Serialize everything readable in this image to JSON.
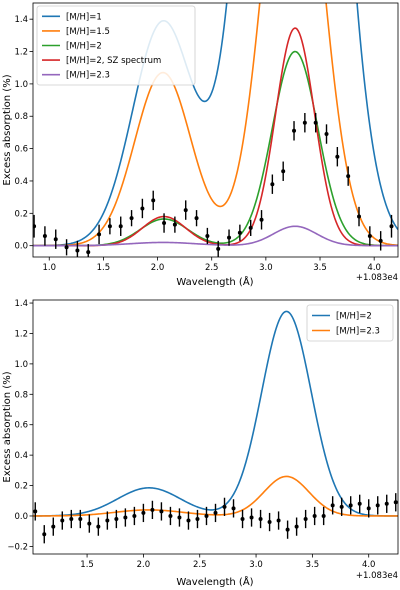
{
  "chart_data": [
    {
      "type": "line",
      "xlabel": "Wavelength (Å)",
      "ylabel": "Excess absorption (%)",
      "x_offset_label": "+1.083e4",
      "xlim": [
        0.85,
        4.22
      ],
      "ylim": [
        -0.07,
        1.5
      ],
      "xticks": [
        1.0,
        1.5,
        2.0,
        2.5,
        3.0,
        3.5,
        4.0
      ],
      "xtick_labels": [
        "1.0",
        "1.5",
        "2.0",
        "2.5",
        "3.0",
        "3.5",
        "4.0"
      ],
      "yticks": [
        0.0,
        0.2,
        0.4,
        0.6,
        0.8,
        1.0,
        1.2,
        1.4
      ],
      "ytick_labels": [
        "0.0",
        "0.2",
        "0.4",
        "0.6",
        "0.8",
        "1.0",
        "1.2",
        "1.4"
      ],
      "legend_position": "upper-left",
      "series": [
        {
          "name": "[M/H]=1",
          "color": "#1f77b4",
          "model": {
            "g1": {
              "amp": 1.38,
              "mu": 2.05,
              "sig": 0.28
            },
            "g2": {
              "amp": 7.5,
              "mu": 3.25,
              "sig": 0.33
            }
          }
        },
        {
          "name": "[M/H]=1.5",
          "color": "#ff7f0e",
          "model": {
            "g1": {
              "amp": 1.07,
              "mu": 2.05,
              "sig": 0.26
            },
            "g2": {
              "amp": 3.0,
              "mu": 3.25,
              "sig": 0.26
            }
          }
        },
        {
          "name": "[M/H]=2",
          "color": "#2ca02c",
          "model": {
            "g1": {
              "amp": 0.165,
              "mu": 2.06,
              "sig": 0.22
            },
            "g2": {
              "amp": 1.2,
              "mu": 3.27,
              "sig": 0.21
            }
          }
        },
        {
          "name": "[M/H]=2, SZ spectrum",
          "color": "#d62728",
          "model": {
            "g1": {
              "amp": 0.18,
              "mu": 2.06,
              "sig": 0.2
            },
            "g2": {
              "amp": 1.345,
              "mu": 3.27,
              "sig": 0.18
            }
          }
        },
        {
          "name": "[M/H]=2.3",
          "color": "#9467bd",
          "model": {
            "g1": {
              "amp": 0.02,
              "mu": 2.05,
              "sig": 0.3
            },
            "g2": {
              "amp": 0.12,
              "mu": 3.27,
              "sig": 0.2
            }
          }
        }
      ],
      "points": {
        "x": [
          0.86,
          0.96,
          1.06,
          1.16,
          1.26,
          1.36,
          1.46,
          1.56,
          1.66,
          1.76,
          1.86,
          1.96,
          2.06,
          2.16,
          2.26,
          2.36,
          2.46,
          2.56,
          2.66,
          2.76,
          2.86,
          2.96,
          3.06,
          3.16,
          3.26,
          3.36,
          3.46,
          3.56,
          3.66,
          3.76,
          3.86,
          3.96,
          4.06,
          4.16
        ],
        "y": [
          0.12,
          0.06,
          0.04,
          -0.01,
          -0.03,
          -0.04,
          0.07,
          0.12,
          0.12,
          0.17,
          0.23,
          0.28,
          0.14,
          0.13,
          0.22,
          0.17,
          0.06,
          -0.02,
          0.05,
          0.08,
          0.11,
          0.16,
          0.38,
          0.46,
          0.71,
          0.76,
          0.76,
          0.69,
          0.55,
          0.43,
          0.18,
          0.06,
          0.03,
          0.12
        ],
        "err": [
          0.07,
          0.06,
          0.06,
          0.05,
          0.06,
          0.05,
          0.06,
          0.05,
          0.06,
          0.05,
          0.06,
          0.06,
          0.06,
          0.05,
          0.06,
          0.05,
          0.05,
          0.05,
          0.05,
          0.05,
          0.05,
          0.06,
          0.06,
          0.06,
          0.06,
          0.06,
          0.06,
          0.06,
          0.06,
          0.06,
          0.06,
          0.06,
          0.06,
          0.07
        ]
      }
    },
    {
      "type": "line",
      "xlabel": "Wavelength (Å)",
      "ylabel": "Excess absorption (%)",
      "x_offset_label": "+1.083e4",
      "xlim": [
        1.02,
        4.26
      ],
      "ylim": [
        -0.25,
        1.42
      ],
      "xticks": [
        1.5,
        2.0,
        2.5,
        3.0,
        3.5,
        4.0
      ],
      "xtick_labels": [
        "1.5",
        "2.0",
        "2.5",
        "3.0",
        "3.5",
        "4.0"
      ],
      "yticks": [
        -0.2,
        0.0,
        0.2,
        0.4,
        0.6,
        0.8,
        1.0,
        1.2,
        1.4
      ],
      "ytick_labels": [
        "−0.2",
        "0.0",
        "0.2",
        "0.4",
        "0.6",
        "0.8",
        "1.0",
        "1.2",
        "1.4"
      ],
      "legend_position": "upper-right",
      "series": [
        {
          "name": "[M/H]=2",
          "color": "#1f77b4",
          "model": {
            "g1": {
              "amp": 0.185,
              "mu": 2.05,
              "sig": 0.28
            },
            "g2": {
              "amp": 1.345,
              "mu": 3.27,
              "sig": 0.22
            }
          }
        },
        {
          "name": "[M/H]=2.3",
          "color": "#ff7f0e",
          "model": {
            "g1": {
              "amp": 0.04,
              "mu": 2.05,
              "sig": 0.3
            },
            "g2": {
              "amp": 0.26,
              "mu": 3.27,
              "sig": 0.2
            }
          }
        }
      ],
      "points": {
        "x": [
          1.04,
          1.12,
          1.2,
          1.28,
          1.36,
          1.44,
          1.52,
          1.6,
          1.68,
          1.76,
          1.84,
          1.92,
          2.0,
          2.08,
          2.16,
          2.24,
          2.32,
          2.4,
          2.48,
          2.56,
          2.64,
          2.72,
          2.8,
          2.88,
          2.96,
          3.04,
          3.12,
          3.2,
          3.28,
          3.36,
          3.44,
          3.52,
          3.6,
          3.68,
          3.76,
          3.84,
          3.92,
          4.0,
          4.08,
          4.16,
          4.24
        ],
        "y": [
          0.03,
          -0.12,
          -0.07,
          -0.03,
          -0.02,
          -0.02,
          -0.05,
          -0.07,
          -0.03,
          -0.02,
          -0.01,
          0.0,
          0.02,
          0.04,
          0.03,
          0.0,
          -0.01,
          -0.03,
          -0.02,
          0.0,
          0.02,
          0.06,
          0.05,
          -0.02,
          -0.01,
          -0.02,
          -0.04,
          -0.03,
          -0.09,
          -0.07,
          -0.02,
          0.0,
          0.0,
          0.07,
          0.06,
          0.07,
          0.08,
          0.05,
          0.07,
          0.08,
          0.09
        ],
        "err": [
          0.06,
          0.06,
          0.06,
          0.06,
          0.06,
          0.06,
          0.06,
          0.06,
          0.06,
          0.06,
          0.06,
          0.06,
          0.06,
          0.06,
          0.06,
          0.06,
          0.06,
          0.06,
          0.06,
          0.06,
          0.06,
          0.06,
          0.06,
          0.06,
          0.06,
          0.06,
          0.06,
          0.06,
          0.06,
          0.06,
          0.06,
          0.06,
          0.06,
          0.06,
          0.06,
          0.06,
          0.06,
          0.06,
          0.06,
          0.06,
          0.06
        ]
      }
    }
  ]
}
